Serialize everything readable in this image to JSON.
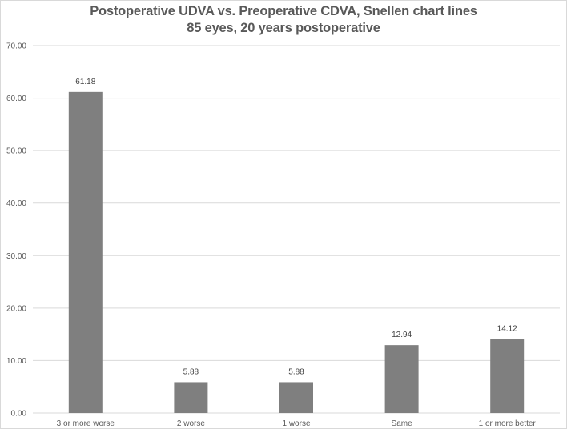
{
  "chart_data": {
    "type": "bar",
    "title": "Postoperative UDVA vs. Preoperative CDVA, Snellen chart lines",
    "subtitle": "85 eyes, 20 years postoperative",
    "xlabel": "",
    "ylabel": "",
    "categories": [
      "3 or more worse",
      "2 worse",
      "1 worse",
      "Same",
      "1 or more better"
    ],
    "values": [
      61.18,
      5.88,
      5.88,
      12.94,
      14.12
    ],
    "data_labels": [
      "61.18",
      "5.88",
      "5.88",
      "12.94",
      "14.12"
    ],
    "ylim": [
      0,
      70
    ],
    "yticks": [
      0,
      10,
      20,
      30,
      40,
      50,
      60,
      70
    ],
    "ytick_labels": [
      "0.00",
      "10.00",
      "20.00",
      "30.00",
      "40.00",
      "50.00",
      "60.00",
      "70.00"
    ],
    "grid": true,
    "legend": "none",
    "colors": {
      "bar": "#7f7f7f",
      "grid": "#d9d9d9",
      "text": "#595959"
    }
  }
}
